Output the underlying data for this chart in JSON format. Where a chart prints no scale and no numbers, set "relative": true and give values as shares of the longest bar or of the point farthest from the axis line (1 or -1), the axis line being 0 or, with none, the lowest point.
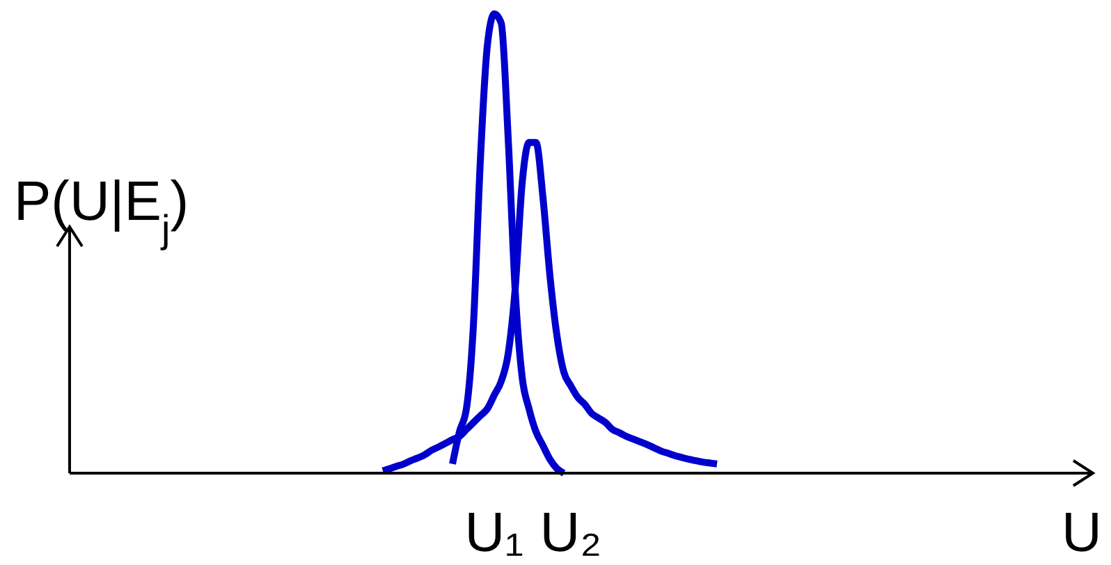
{
  "chart_data": {
    "type": "line",
    "relative": true,
    "ylabel": "P(U|E$_{j}$)",
    "annotations": [
      "U"
    ],
    "marker": "none",
    "line_style": "solid",
    "categories": [
      null,
      null,
      null,
      null,
      null,
      null,
      null,
      null,
      null,
      null,
      null,
      null,
      null,
      null,
      null,
      null,
      "U₁",
      null,
      null,
      null,
      null,
      null,
      null,
      null,
      null,
      null,
      null,
      "U₂",
      null,
      null,
      null,
      null,
      null,
      null,
      null,
      null,
      null,
      null,
      null,
      null,
      null,
      null,
      null,
      null,
      null,
      null,
      null,
      null,
      null
    ],
    "series": [
      {
        "color": "#0000cc",
        "values": [
          null,
          null,
          null,
          null,
          null,
          null,
          null,
          null,
          null,
          null,
          0.02,
          0.09,
          0.14,
          0.32,
          0.68,
          0.93,
          1,
          0.98,
          0.73,
          0.4,
          0.21,
          0.14,
          0.09,
          0.06,
          0.03,
          0.01,
          0,
          null,
          null,
          null,
          null,
          null,
          null,
          null,
          null,
          null,
          null,
          null,
          null,
          null,
          null,
          null,
          null,
          null,
          null,
          null,
          null,
          null,
          null
        ]
      },
      {
        "color": "#0000cc",
        "values": [
          0.005,
          0.01,
          0.015,
          0.02,
          0.027,
          0.033,
          0.04,
          0.05,
          0.057,
          0.065,
          0.073,
          0.08,
          0.095,
          0.11,
          0.125,
          0.14,
          0.17,
          0.2,
          0.26,
          0.4,
          0.63,
          0.72,
          0.72,
          0.6,
          0.43,
          0.3,
          0.22,
          0.19,
          0.165,
          0.15,
          0.13,
          0.12,
          0.11,
          0.095,
          0.088,
          0.08,
          0.074,
          0.068,
          0.062,
          0.055,
          0.048,
          0.043,
          0.038,
          0.034,
          0.03,
          0.027,
          0.024,
          0.022,
          0.02
        ]
      }
    ]
  }
}
